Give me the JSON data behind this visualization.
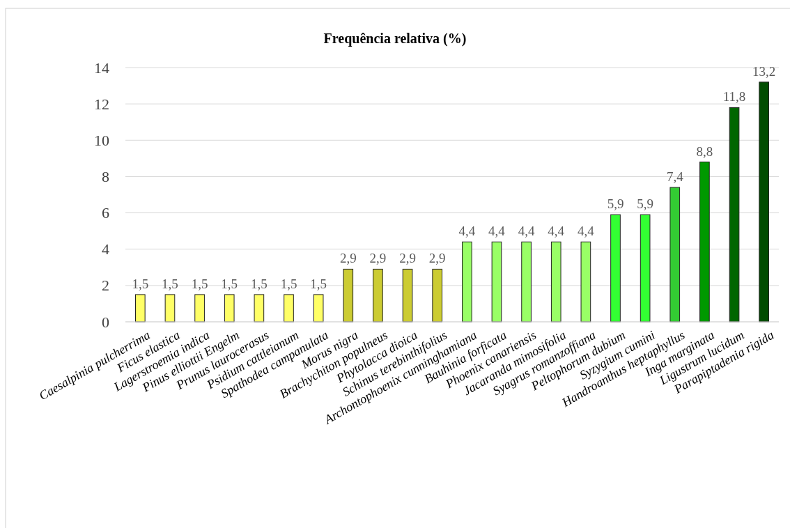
{
  "chart_data": {
    "type": "bar",
    "title": "Frequência relativa (%)",
    "categories": [
      "Caesalpinia pulcherrima",
      "Ficus elastica",
      "Lagerstroemia indica",
      "Pinus elliottii Engelm",
      "Prunus laurocerasus",
      "Psidium cattleianum",
      "Spathodea campanulata",
      "Morus nigra",
      "Brachychiton populneus",
      "Phytolacca dioica",
      "Schinus terebinthifolius",
      "Archontophoenix cunninghamiana",
      "Bauhinia forficata",
      "Phoenix canariensis",
      "Jacaranda mimosifolia",
      "Syagrus romanzoffiana",
      "Peltophorum dubium",
      "Syzygium cumini",
      "Handroanthus heptaphyllus",
      "Inga marginata",
      "Ligustrum lucidum",
      "Parapiptadenia rigida"
    ],
    "values": [
      1.5,
      1.5,
      1.5,
      1.5,
      1.5,
      1.5,
      1.5,
      2.9,
      2.9,
      2.9,
      2.9,
      4.4,
      4.4,
      4.4,
      4.4,
      4.4,
      5.9,
      5.9,
      7.4,
      8.8,
      11.8,
      13.2
    ],
    "value_labels": [
      "1,5",
      "1,5",
      "1,5",
      "1,5",
      "1,5",
      "1,5",
      "1,5",
      "2,9",
      "2,9",
      "2,9",
      "2,9",
      "4,4",
      "4,4",
      "4,4",
      "4,4",
      "4,4",
      "5,9",
      "5,9",
      "7,4",
      "8,8",
      "11,8",
      "13,2"
    ],
    "colors": [
      "#ffff66",
      "#ffff66",
      "#ffff66",
      "#ffff66",
      "#ffff66",
      "#ffff66",
      "#ffff66",
      "#cccc33",
      "#cccc33",
      "#cccc33",
      "#cccc33",
      "#99ff66",
      "#99ff66",
      "#99ff66",
      "#99ff66",
      "#99ff66",
      "#33ff33",
      "#33ff33",
      "#33cc33",
      "#009900",
      "#006600",
      "#004d00"
    ],
    "ylim": [
      0,
      14
    ],
    "yticks": [
      0,
      2,
      4,
      6,
      8,
      10,
      12,
      14
    ],
    "grid": "y"
  }
}
